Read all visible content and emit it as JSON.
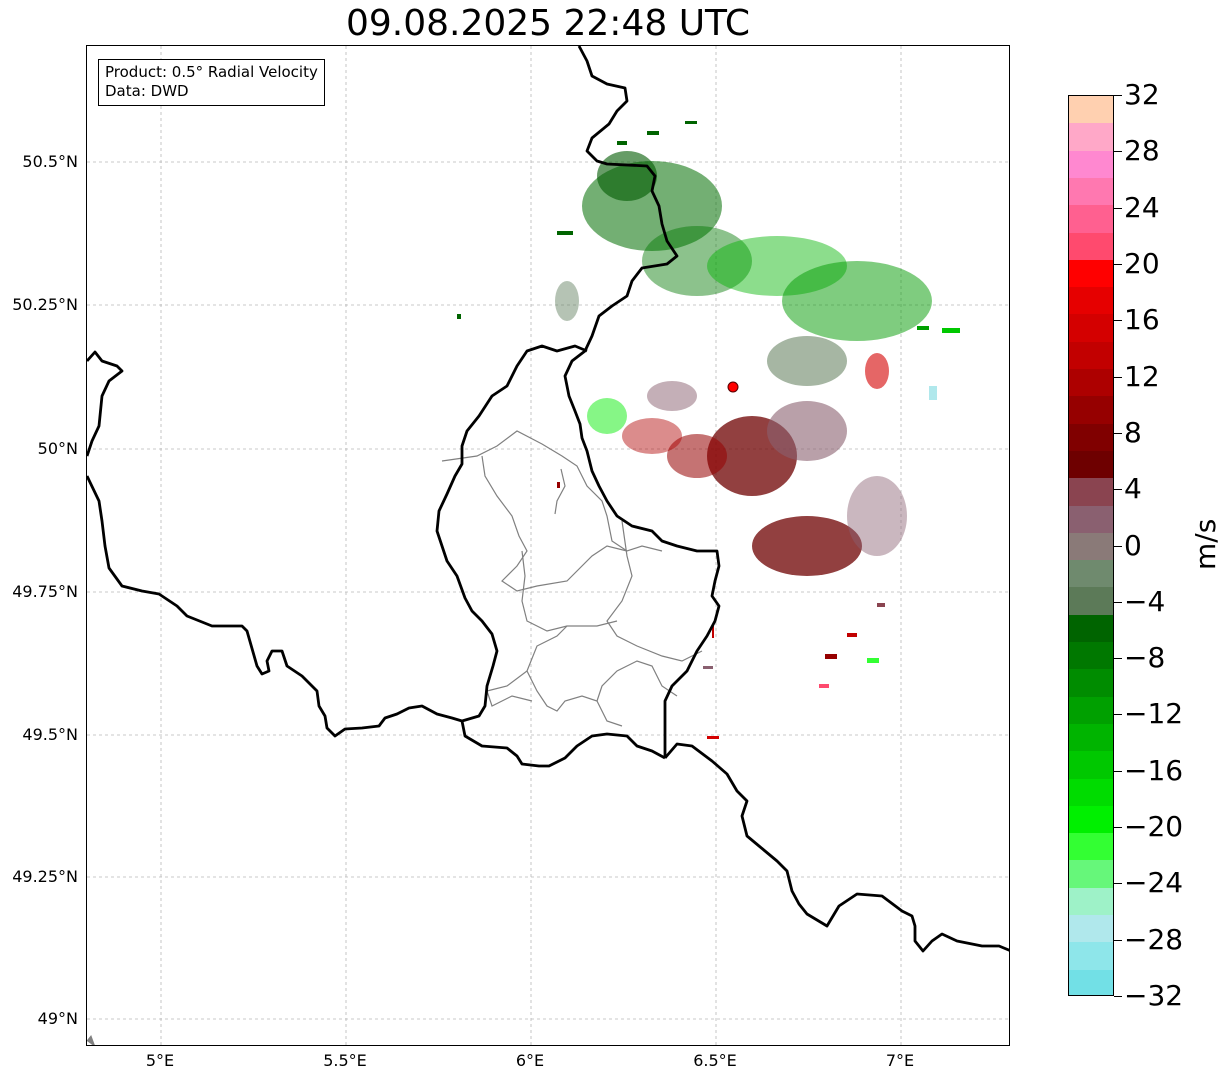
{
  "title": "09.08.2025 22:48 UTC",
  "info_box": {
    "product_line": "Product: 0.5° Radial Velocity",
    "data_line": "Data: DWD"
  },
  "axes": {
    "lat_labels": [
      "50.5°N",
      "50.25°N",
      "50°N",
      "49.75°N",
      "49.5°N",
      "49.25°N",
      "49°N"
    ],
    "lon_labels": [
      "5°E",
      "5.5°E",
      "6°E",
      "6.5°E",
      "7°E"
    ]
  },
  "colorbar": {
    "unit": "m/s",
    "min": -32,
    "max": 32,
    "tick_labels": [
      "32",
      "28",
      "24",
      "20",
      "16",
      "12",
      "8",
      "4",
      "0",
      "−4",
      "−8",
      "−12",
      "−16",
      "−20",
      "−24",
      "−28",
      "−32"
    ],
    "colors_top_to_bottom": [
      "#ffd0b0",
      "#ffa8c8",
      "#ff88d0",
      "#ff78b0",
      "#ff6090",
      "#ff4a6e",
      "#ff0000",
      "#e60000",
      "#d40000",
      "#c20000",
      "#ad0000",
      "#960000",
      "#800000",
      "#6e0000",
      "#8a4450",
      "#8a6070",
      "#8a7a78",
      "#6f8a6e",
      "#5c7a58",
      "#006400",
      "#007800",
      "#008c00",
      "#00a000",
      "#00b400",
      "#00c800",
      "#00dc00",
      "#00f000",
      "#33ff33",
      "#66f77a",
      "#9ef2c8",
      "#b0e8ec",
      "#8ee6ea",
      "#72e0e6"
    ]
  },
  "radar": {
    "site_marker_color": "#ff0000"
  }
}
